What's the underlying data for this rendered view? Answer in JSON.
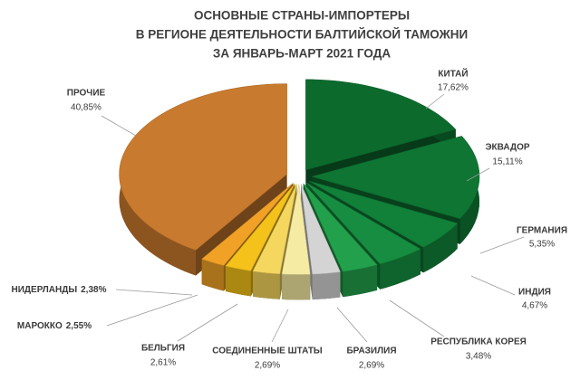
{
  "chart_data": {
    "type": "pie",
    "title": [
      "ОСНОВНЫЕ СТРАНЫ-ИМПОРТЕРЫ",
      "В РЕГИОНЕ ДЕЯТЕЛЬНОСТИ БАЛТИЙСКОЙ ТАМОЖНИ",
      "ЗА ЯНВАРЬ-МАРТ 2021 ГОДА"
    ],
    "categories": [
      "КИТАЙ",
      "ЭКВАДОР",
      "ГЕРМАНИЯ",
      "ИНДИЯ",
      "РЕСПУБЛИКА КОРЕЯ",
      "БРАЗИЛИЯ",
      "СОЕДИНЕННЫЕ ШТАТЫ",
      "БЕЛЬГИЯ",
      "МАРОККО",
      "НИДЕРЛАНДЫ",
      "ПРОЧИЕ"
    ],
    "values": [
      17.62,
      15.11,
      5.35,
      4.67,
      3.48,
      2.69,
      2.69,
      2.61,
      2.55,
      2.38,
      40.85
    ],
    "value_labels": [
      "17,62%",
      "15,11%",
      "5,35%",
      "4,67%",
      "3,48%",
      "2,69%",
      "2,69%",
      "2,61%",
      "2,55%",
      "2,38%",
      "40,85%"
    ],
    "colors": [
      "#0c6a2d",
      "#0e7533",
      "#118039",
      "#168d40",
      "#22a04c",
      "#d4d4d4",
      "#f6eba2",
      "#f5d65e",
      "#f4c21a",
      "#f0a126",
      "#c87a2e"
    ]
  }
}
